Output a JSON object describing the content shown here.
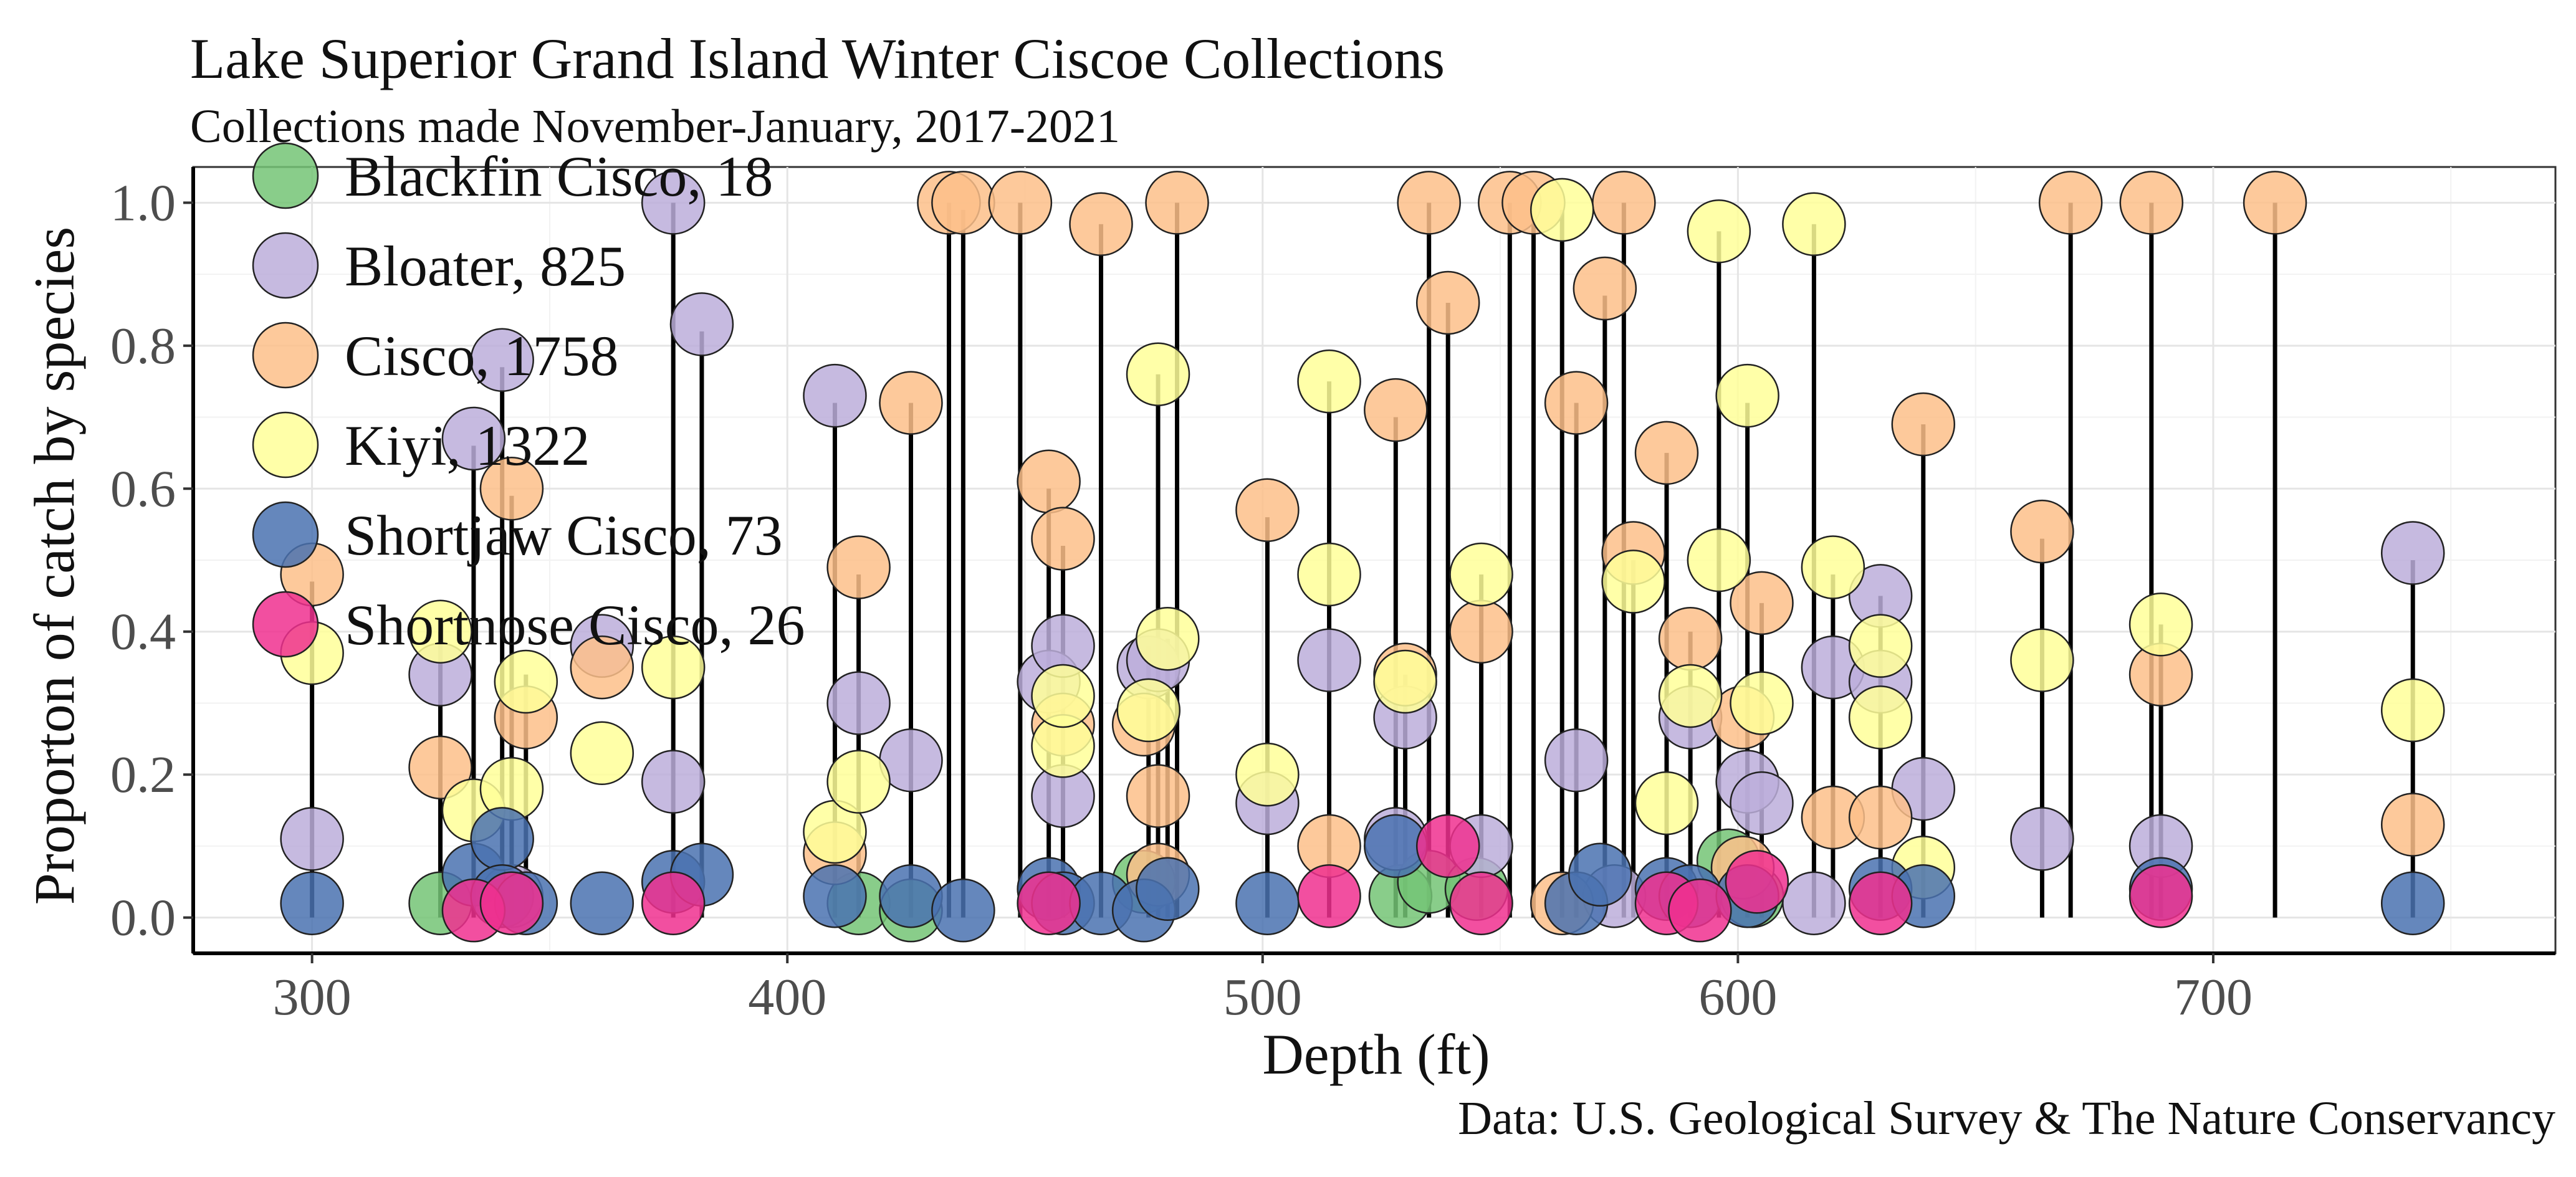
{
  "chart_data": {
    "type": "scatter",
    "title": "Lake Superior Grand Island Winter Ciscoe Collections",
    "subtitle": "Collections made November-January, 2017-2021",
    "caption": "Data: U.S. Geological Survey & The Nature Conservancy",
    "xlabel": "Depth (ft)",
    "ylabel": "Proporton of catch by species",
    "xlim": [
      275,
      772
    ],
    "ylim": [
      -0.05,
      1.05
    ],
    "xticks": [
      300,
      400,
      500,
      600,
      700
    ],
    "yticks": [
      0.0,
      0.2,
      0.4,
      0.6,
      0.8,
      1.0
    ],
    "ytick_labels": [
      "0.0",
      "0.2",
      "0.4",
      "0.6",
      "0.8",
      "1.0"
    ],
    "grid": true,
    "legend_position": "top-left",
    "stems": [
      {
        "x": 300,
        "top": 0.47
      },
      {
        "x": 327,
        "top": 0.4
      },
      {
        "x": 334,
        "top": 0.66
      },
      {
        "x": 340,
        "top": 0.77
      },
      {
        "x": 342,
        "top": 0.59
      },
      {
        "x": 345,
        "top": 0.34
      },
      {
        "x": 376,
        "top": 1.0
      },
      {
        "x": 382,
        "top": 0.82
      },
      {
        "x": 410,
        "top": 0.72
      },
      {
        "x": 415,
        "top": 0.48
      },
      {
        "x": 426,
        "top": 0.72
      },
      {
        "x": 434,
        "top": 1.0
      },
      {
        "x": 437,
        "top": 0.99
      },
      {
        "x": 449,
        "top": 1.0
      },
      {
        "x": 455,
        "top": 0.6
      },
      {
        "x": 458,
        "top": 0.52
      },
      {
        "x": 466,
        "top": 0.97
      },
      {
        "x": 476,
        "top": 0.38
      },
      {
        "x": 478,
        "top": 0.76
      },
      {
        "x": 480,
        "top": 0.39
      },
      {
        "x": 482,
        "top": 1.0
      },
      {
        "x": 501,
        "top": 0.56
      },
      {
        "x": 514,
        "top": 0.75
      },
      {
        "x": 528,
        "top": 0.7
      },
      {
        "x": 530,
        "top": 0.34
      },
      {
        "x": 535,
        "top": 1.0
      },
      {
        "x": 539,
        "top": 0.86
      },
      {
        "x": 546,
        "top": 0.48
      },
      {
        "x": 552,
        "top": 1.0
      },
      {
        "x": 557,
        "top": 1.0
      },
      {
        "x": 563,
        "top": 0.99
      },
      {
        "x": 566,
        "top": 0.72
      },
      {
        "x": 572,
        "top": 0.87
      },
      {
        "x": 576,
        "top": 1.0
      },
      {
        "x": 578,
        "top": 0.5
      },
      {
        "x": 585,
        "top": 0.65
      },
      {
        "x": 590,
        "top": 0.4
      },
      {
        "x": 596,
        "top": 0.96
      },
      {
        "x": 602,
        "top": 0.72
      },
      {
        "x": 605,
        "top": 0.44
      },
      {
        "x": 616,
        "top": 0.97
      },
      {
        "x": 620,
        "top": 0.48
      },
      {
        "x": 630,
        "top": 0.45
      },
      {
        "x": 639,
        "top": 0.69
      },
      {
        "x": 664,
        "top": 0.53
      },
      {
        "x": 670,
        "top": 1.0
      },
      {
        "x": 687,
        "top": 1.0
      },
      {
        "x": 689,
        "top": 0.41
      },
      {
        "x": 713,
        "top": 1.0
      },
      {
        "x": 742,
        "top": 0.5
      }
    ],
    "series": [
      {
        "name": "Blackfin Cisco, 18",
        "color": "#74c476",
        "points": [
          [
            327,
            0.02
          ],
          [
            415,
            0.02
          ],
          [
            426,
            0.01
          ],
          [
            475,
            0.05
          ],
          [
            529,
            0.03
          ],
          [
            535,
            0.05
          ],
          [
            598,
            0.08
          ],
          [
            603,
            0.03
          ],
          [
            545,
            0.04
          ]
        ]
      },
      {
        "name": "Bloater, 825",
        "color": "#bcaedb",
        "points": [
          [
            300,
            0.11
          ],
          [
            327,
            0.34
          ],
          [
            334,
            0.67
          ],
          [
            340,
            0.78
          ],
          [
            342,
            0.03
          ],
          [
            361,
            0.38
          ],
          [
            376,
            1.0
          ],
          [
            376,
            0.19
          ],
          [
            382,
            0.83
          ],
          [
            410,
            0.73
          ],
          [
            415,
            0.3
          ],
          [
            426,
            0.22
          ],
          [
            455,
            0.33
          ],
          [
            458,
            0.38
          ],
          [
            458,
            0.17
          ],
          [
            476,
            0.35
          ],
          [
            478,
            0.36
          ],
          [
            501,
            0.16
          ],
          [
            514,
            0.36
          ],
          [
            528,
            0.11
          ],
          [
            530,
            0.28
          ],
          [
            546,
            0.1
          ],
          [
            566,
            0.22
          ],
          [
            574,
            0.03
          ],
          [
            590,
            0.28
          ],
          [
            602,
            0.19
          ],
          [
            605,
            0.16
          ],
          [
            616,
            0.02
          ],
          [
            620,
            0.35
          ],
          [
            630,
            0.45
          ],
          [
            630,
            0.33
          ],
          [
            639,
            0.18
          ],
          [
            664,
            0.11
          ],
          [
            689,
            0.1
          ],
          [
            742,
            0.51
          ]
        ]
      },
      {
        "name": "Cisco, 1758",
        "color": "#fdc08a",
        "points": [
          [
            300,
            0.48
          ],
          [
            327,
            0.21
          ],
          [
            342,
            0.6
          ],
          [
            345,
            0.28
          ],
          [
            361,
            0.35
          ],
          [
            410,
            0.09
          ],
          [
            415,
            0.49
          ],
          [
            426,
            0.72
          ],
          [
            434,
            1.0
          ],
          [
            437,
            1.0
          ],
          [
            449,
            1.0
          ],
          [
            455,
            0.61
          ],
          [
            458,
            0.53
          ],
          [
            458,
            0.27
          ],
          [
            466,
            0.97
          ],
          [
            475,
            0.27
          ],
          [
            478,
            0.17
          ],
          [
            478,
            0.06
          ],
          [
            482,
            1.0
          ],
          [
            501,
            0.57
          ],
          [
            514,
            0.1
          ],
          [
            528,
            0.71
          ],
          [
            530,
            0.34
          ],
          [
            535,
            1.0
          ],
          [
            539,
            0.86
          ],
          [
            546,
            0.4
          ],
          [
            552,
            1.0
          ],
          [
            557,
            1.0
          ],
          [
            563,
            0.02
          ],
          [
            566,
            0.72
          ],
          [
            572,
            0.88
          ],
          [
            576,
            1.0
          ],
          [
            578,
            0.51
          ],
          [
            585,
            0.65
          ],
          [
            590,
            0.39
          ],
          [
            601,
            0.28
          ],
          [
            601,
            0.07
          ],
          [
            605,
            0.44
          ],
          [
            620,
            0.14
          ],
          [
            630,
            0.14
          ],
          [
            639,
            0.69
          ],
          [
            664,
            0.54
          ],
          [
            670,
            1.0
          ],
          [
            687,
            1.0
          ],
          [
            689,
            0.34
          ],
          [
            713,
            1.0
          ],
          [
            742,
            0.13
          ]
        ]
      },
      {
        "name": "Kiyi, 1322",
        "color": "#ffff99",
        "points": [
          [
            300,
            0.37
          ],
          [
            327,
            0.4
          ],
          [
            334,
            0.15
          ],
          [
            342,
            0.18
          ],
          [
            345,
            0.33
          ],
          [
            361,
            0.23
          ],
          [
            376,
            0.35
          ],
          [
            410,
            0.12
          ],
          [
            415,
            0.19
          ],
          [
            458,
            0.24
          ],
          [
            458,
            0.31
          ],
          [
            476,
            0.29
          ],
          [
            478,
            0.76
          ],
          [
            480,
            0.39
          ],
          [
            501,
            0.2
          ],
          [
            514,
            0.75
          ],
          [
            514,
            0.48
          ],
          [
            530,
            0.33
          ],
          [
            546,
            0.48
          ],
          [
            563,
            0.99
          ],
          [
            578,
            0.47
          ],
          [
            585,
            0.16
          ],
          [
            590,
            0.31
          ],
          [
            596,
            0.96
          ],
          [
            596,
            0.5
          ],
          [
            602,
            0.73
          ],
          [
            605,
            0.3
          ],
          [
            616,
            0.97
          ],
          [
            620,
            0.49
          ],
          [
            630,
            0.38
          ],
          [
            630,
            0.28
          ],
          [
            639,
            0.07
          ],
          [
            664,
            0.36
          ],
          [
            689,
            0.41
          ],
          [
            742,
            0.29
          ]
        ]
      },
      {
        "name": "Shortjaw Cisco, 73",
        "color": "#4a72b0",
        "points": [
          [
            300,
            0.02
          ],
          [
            334,
            0.06
          ],
          [
            340,
            0.11
          ],
          [
            340,
            0.03
          ],
          [
            345,
            0.02
          ],
          [
            361,
            0.02
          ],
          [
            376,
            0.05
          ],
          [
            382,
            0.06
          ],
          [
            410,
            0.03
          ],
          [
            426,
            0.03
          ],
          [
            437,
            0.01
          ],
          [
            455,
            0.04
          ],
          [
            458,
            0.02
          ],
          [
            466,
            0.02
          ],
          [
            475,
            0.01
          ],
          [
            480,
            0.04
          ],
          [
            501,
            0.02
          ],
          [
            528,
            0.1
          ],
          [
            566,
            0.02
          ],
          [
            571,
            0.06
          ],
          [
            585,
            0.04
          ],
          [
            590,
            0.03
          ],
          [
            602,
            0.03
          ],
          [
            630,
            0.04
          ],
          [
            639,
            0.03
          ],
          [
            689,
            0.04
          ],
          [
            742,
            0.02
          ]
        ]
      },
      {
        "name": "Shortnose Cisco, 26",
        "color": "#f0308f",
        "points": [
          [
            334,
            0.01
          ],
          [
            342,
            0.02
          ],
          [
            376,
            0.02
          ],
          [
            455,
            0.02
          ],
          [
            514,
            0.03
          ],
          [
            539,
            0.1
          ],
          [
            546,
            0.02
          ],
          [
            585,
            0.02
          ],
          [
            592,
            0.01
          ],
          [
            604,
            0.05
          ],
          [
            630,
            0.02
          ],
          [
            689,
            0.03
          ]
        ]
      }
    ]
  }
}
